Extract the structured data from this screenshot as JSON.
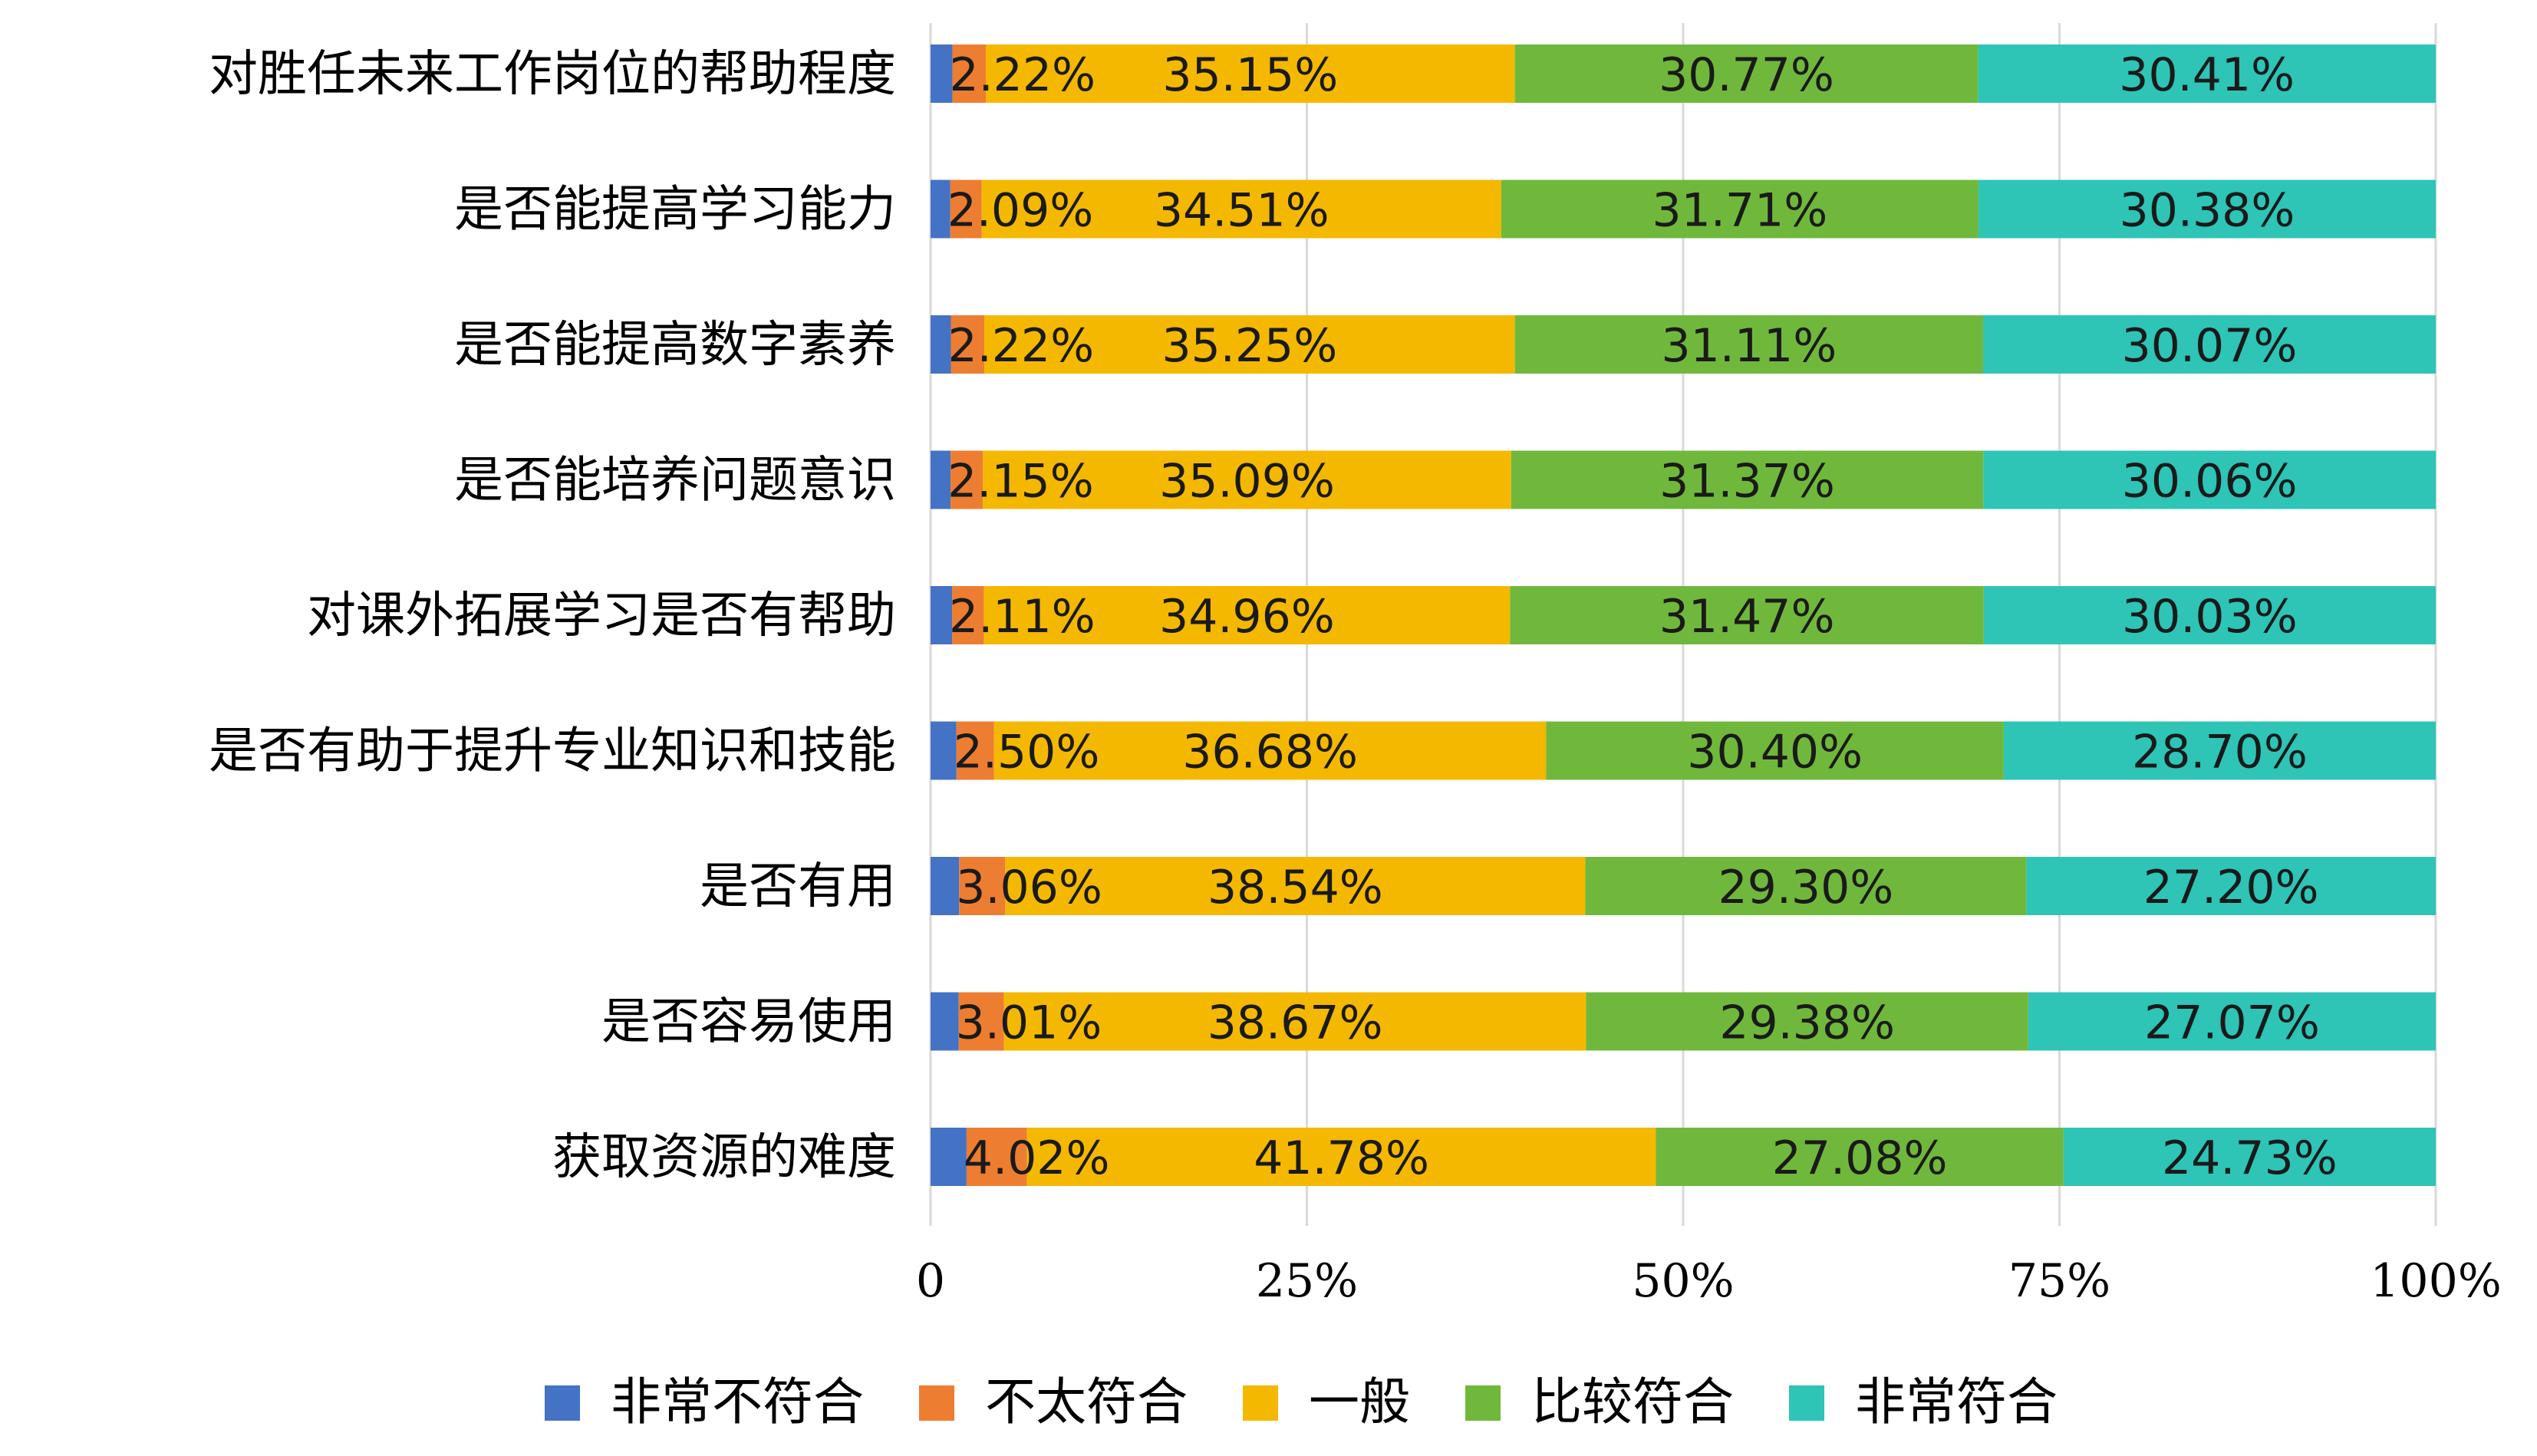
{
  "chart_data": {
    "type": "bar",
    "orientation": "horizontal",
    "stacked": "percent",
    "categories": [
      "对胜任未来工作岗位的帮助程度",
      "是否能提高学习能力",
      "是否能提高数字素养",
      "是否能培养问题意识",
      "对课外拓展学习是否有帮助",
      "是否有助于提升专业知识和技能",
      "是否有用",
      "是否容易使用",
      "获取资源的难度"
    ],
    "series": [
      {
        "name": "非常不符合",
        "color": "#4472C4",
        "values": [
          1.45,
          1.31,
          1.35,
          1.33,
          1.43,
          1.72,
          1.9,
          1.87,
          2.39
        ],
        "labels": [
          "",
          "",
          "",
          "",
          "",
          "",
          "",
          "",
          ""
        ]
      },
      {
        "name": "不太符合",
        "color": "#ED7D31",
        "values": [
          2.22,
          2.09,
          2.22,
          2.15,
          2.11,
          2.5,
          3.06,
          3.01,
          4.02
        ],
        "labels": [
          "2.22%",
          "2.09%",
          "2.22%",
          "2.15%",
          "2.11%",
          "2.50%",
          "3.06%",
          "3.01%",
          "4.02%"
        ]
      },
      {
        "name": "一般",
        "color": "#F4B800",
        "values": [
          35.15,
          34.51,
          35.25,
          35.09,
          34.96,
          36.68,
          38.54,
          38.67,
          41.78
        ],
        "labels": [
          "35.15%",
          "34.51%",
          "35.25%",
          "35.09%",
          "34.96%",
          "36.68%",
          "38.54%",
          "38.67%",
          "41.78%"
        ]
      },
      {
        "name": "比较符合",
        "color": "#70B83C",
        "values": [
          30.77,
          31.71,
          31.11,
          31.37,
          31.47,
          30.4,
          29.3,
          29.38,
          27.08
        ],
        "labels": [
          "30.77%",
          "31.71%",
          "31.11%",
          "31.37%",
          "31.47%",
          "30.40%",
          "29.30%",
          "29.38%",
          "27.08%"
        ]
      },
      {
        "name": "非常符合",
        "color": "#2EC4B6",
        "values": [
          30.41,
          30.38,
          30.07,
          30.06,
          30.03,
          28.7,
          27.2,
          27.07,
          24.73
        ],
        "labels": [
          "30.41%",
          "30.38%",
          "30.07%",
          "30.06%",
          "30.03%",
          "28.70%",
          "27.20%",
          "27.07%",
          "24.73%"
        ]
      }
    ],
    "xticks": [
      "0",
      "25%",
      "50%",
      "75%",
      "100%"
    ],
    "xlim": [
      0,
      100
    ],
    "grid": true,
    "legend_position": "bottom",
    "title": "",
    "xlabel": "",
    "ylabel": ""
  }
}
